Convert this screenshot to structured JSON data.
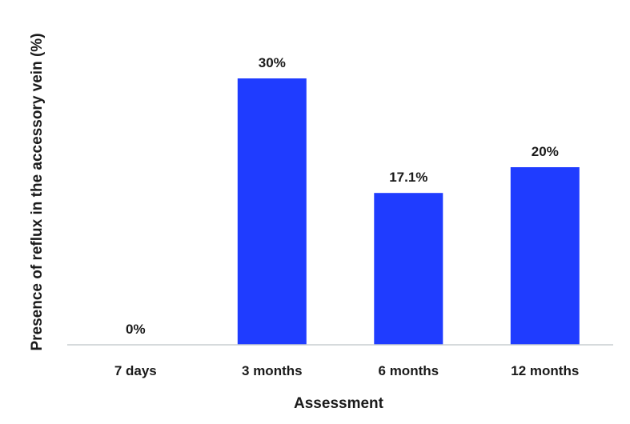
{
  "chart_data": {
    "type": "bar",
    "categories": [
      "7 days",
      "3 months",
      "6 months",
      "12 months"
    ],
    "values": [
      0,
      30,
      17.1,
      20
    ],
    "data_labels": [
      "0%",
      "30%",
      "17.1%",
      "20%"
    ],
    "title": "",
    "xlabel": "Assessment",
    "ylabel": "Presence of reflux in the accessory vein (%)",
    "ylim": [
      0,
      30
    ],
    "grid": false,
    "legend": "none",
    "colors": {
      "bar": "#1f3cff",
      "axis": "#c8cdd0",
      "text": "#1a1a1a"
    }
  }
}
